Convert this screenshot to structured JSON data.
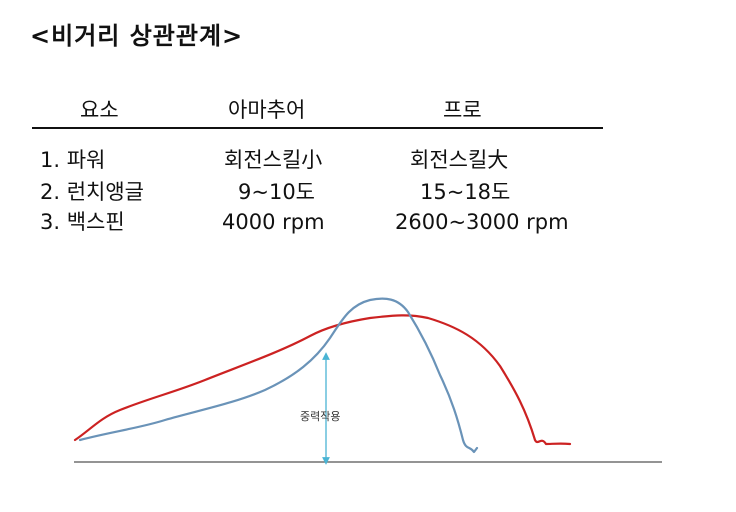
{
  "title": "<비거리 상관관계>",
  "table": {
    "headers": [
      "요소",
      "아마추어",
      "프로"
    ],
    "rows": [
      {
        "factor": "1. 파워",
        "amateur": "회전스킬小",
        "pro": "회전스킬大"
      },
      {
        "factor": "2. 런치앵글",
        "amateur": "9~10도",
        "pro": "15~18도"
      },
      {
        "factor": "3. 백스핀",
        "amateur": "4000 rpm",
        "pro": "2600~3000 rpm"
      }
    ]
  },
  "chart": {
    "annotation": "중력작용",
    "colors": {
      "pro_trajectory": "#cc2222",
      "amateur_trajectory": "#6a93b8",
      "gravity_arrow": "#4ab4d4",
      "ground": "#555555"
    }
  }
}
